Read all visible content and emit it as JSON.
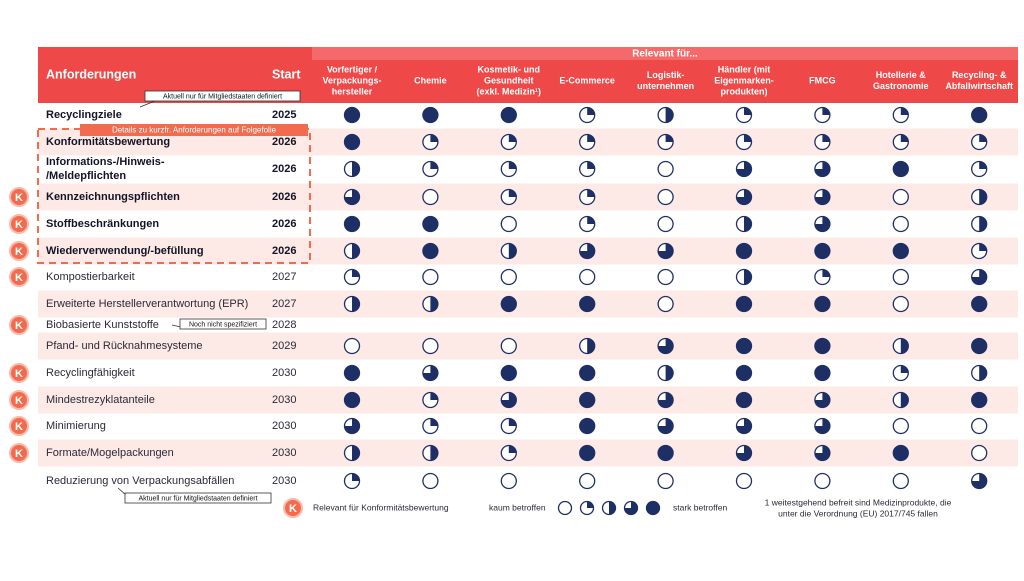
{
  "header": {
    "relevant_for": "Relevant für...",
    "requirements": "Anforderungen",
    "start": "Start"
  },
  "columns": [
    [
      "Vorfertiger /",
      "Verpackungs-",
      "hersteller"
    ],
    [
      "Chemie"
    ],
    [
      "Kosmetik- und",
      "Gesundheit",
      "(exkl. Medizin¹)"
    ],
    [
      "E-Commerce"
    ],
    [
      "Logistik-",
      "unternehmen"
    ],
    [
      "Händler (mit",
      "Eigenmarken-",
      "produkten)"
    ],
    [
      "FMCG"
    ],
    [
      "Hotellerie &",
      "Gastronomie"
    ],
    [
      "Recycling- &",
      "Abfallwirtschaft"
    ]
  ],
  "k_symbol": "K",
  "rows": [
    {
      "label": [
        "Recyclingziele"
      ],
      "start": 2025,
      "bold": true,
      "k": false,
      "values": [
        4,
        4,
        4,
        1,
        2,
        1,
        1,
        1,
        4
      ]
    },
    {
      "label": [
        "Konformitätsbewertung"
      ],
      "start": 2026,
      "bold": true,
      "k": false,
      "values": [
        4,
        1,
        1,
        1,
        1,
        1,
        1,
        1,
        1
      ]
    },
    {
      "label": [
        "Informations-/Hinweis-",
        "/Meldepflichten"
      ],
      "start": 2026,
      "bold": true,
      "k": false,
      "values": [
        2,
        1,
        1,
        1,
        0,
        3,
        3,
        4,
        1
      ]
    },
    {
      "label": [
        "Kennzeichnungspflichten"
      ],
      "start": 2026,
      "bold": true,
      "k": true,
      "values": [
        3,
        0,
        1,
        1,
        0,
        3,
        3,
        0,
        2
      ]
    },
    {
      "label": [
        "Stoffbeschränkungen"
      ],
      "start": 2026,
      "bold": true,
      "k": true,
      "values": [
        4,
        4,
        0,
        1,
        0,
        2,
        3,
        0,
        2
      ]
    },
    {
      "label": [
        "Wiederverwendung/-befüllung"
      ],
      "start": 2026,
      "bold": true,
      "k": true,
      "values": [
        2,
        4,
        2,
        3,
        3,
        4,
        4,
        4,
        1
      ]
    },
    {
      "label": [
        "Kompostierbarkeit"
      ],
      "start": 2027,
      "bold": false,
      "k": true,
      "values": [
        1,
        0,
        0,
        0,
        0,
        2,
        1,
        0,
        3
      ]
    },
    {
      "label": [
        "Erweiterte Herstellerverantwortung (EPR)"
      ],
      "start": 2027,
      "bold": false,
      "k": false,
      "values": [
        2,
        2,
        4,
        4,
        0,
        4,
        4,
        0,
        4
      ]
    },
    {
      "label": [
        "Biobasierte Kunststoffe"
      ],
      "start": 2028,
      "bold": false,
      "k": true,
      "values": null
    },
    {
      "label": [
        "Pfand- und Rücknahmesysteme"
      ],
      "start": 2029,
      "bold": false,
      "k": false,
      "values": [
        0,
        0,
        0,
        2,
        3,
        4,
        4,
        2,
        4
      ]
    },
    {
      "label": [
        "Recyclingfähigkeit"
      ],
      "start": 2030,
      "bold": false,
      "k": true,
      "values": [
        4,
        3,
        4,
        4,
        2,
        4,
        4,
        1,
        2
      ]
    },
    {
      "label": [
        "Mindestrezyklatanteile"
      ],
      "start": 2030,
      "bold": false,
      "k": true,
      "values": [
        4,
        1,
        3,
        4,
        3,
        4,
        3,
        2,
        4
      ]
    },
    {
      "label": [
        "Minimierung"
      ],
      "start": 2030,
      "bold": false,
      "k": true,
      "values": [
        3,
        1,
        1,
        4,
        3,
        3,
        3,
        0,
        0
      ]
    },
    {
      "label": [
        "Formate/Mogelpackungen"
      ],
      "start": 2030,
      "bold": false,
      "k": true,
      "values": [
        2,
        2,
        1,
        4,
        4,
        3,
        3,
        4,
        0
      ]
    },
    {
      "label": [
        "Reduzierung von Verpackungsabfällen"
      ],
      "start": 2030,
      "bold": false,
      "k": false,
      "values": [
        1,
        0,
        0,
        0,
        0,
        0,
        0,
        0,
        3
      ]
    }
  ],
  "notes": {
    "member_states_top": "Aktuell nur für Mitgliedstaaten definiert",
    "follow_up": "Details zu kurzfr. Anforderungen auf Folgefolie",
    "not_specified": "Noch nicht spezifiziert",
    "member_states_bottom": "Aktuell nur für Mitgliedstaaten definiert"
  },
  "legend": {
    "k_text": "Relevant für Konformitätsbewertung",
    "low": "kaum betroffen",
    "levels": [
      0,
      1,
      2,
      3,
      4
    ],
    "high": "stark betroffen"
  },
  "footnote": [
    "1 weitestgehend befreit sind Medizinprodukte, die",
    "unter die Verordnung (EU) 2017/745 fallen"
  ]
}
